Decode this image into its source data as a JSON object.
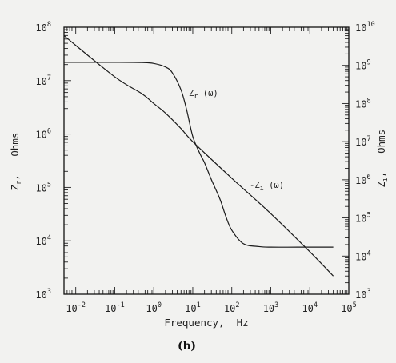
{
  "chart_data": {
    "type": "line",
    "xscale": "log",
    "yscale": "log",
    "x_ticks": [
      "10^-2",
      "10^-1",
      "10^0",
      "10^1",
      "10^2",
      "10^3",
      "10^4",
      "10^5"
    ],
    "xlim": [
      0.005,
      100000
    ],
    "xlabel": "Frequency, Hz",
    "left_axis": {
      "label": "Zr, Ohms",
      "label_display": "Z_r, Ohms",
      "ylim": [
        1000,
        100000000
      ],
      "ticks": [
        "10^3",
        "10^4",
        "10^5",
        "10^6",
        "10^7",
        "10^8"
      ]
    },
    "right_axis": {
      "label": "-Zi, Ohms",
      "label_display": "-Z_i, Ohms",
      "ylim": [
        1000,
        10000000000
      ],
      "ticks": [
        "10^3",
        "10^4",
        "10^5",
        "10^6",
        "10^7",
        "10^8",
        "10^9",
        "10^10"
      ]
    },
    "series": [
      {
        "name": "Zr(ω)",
        "axis": "left",
        "x": [
          0.005,
          0.1,
          0.5,
          1,
          2,
          3,
          5,
          7,
          10,
          15,
          20,
          30,
          50,
          70,
          100,
          200,
          500,
          1000,
          5000,
          40000
        ],
        "y": [
          22000000,
          22000000,
          21800000,
          21000000,
          18000000,
          14000000,
          6700000,
          2800000,
          900000,
          440000,
          290000,
          140000,
          60000,
          29000,
          15800,
          8800,
          7800,
          7600,
          7600,
          7600
        ]
      },
      {
        "name": "-Zi(ω)",
        "axis": "right",
        "x": [
          0.005,
          0.1,
          0.5,
          1,
          2,
          5,
          10,
          100,
          1000,
          10000,
          40000
        ],
        "y": [
          6000000000,
          500000000,
          180000000,
          100000000,
          56000000,
          22000000,
          10000000,
          1100000,
          130000,
          13000,
          3000
        ]
      }
    ],
    "curve_labels": [
      {
        "series": "Zr(ω)",
        "text_main": "Z",
        "text_sub": "r",
        "text_arg": " (ω)"
      },
      {
        "series": "-Zi(ω)",
        "text_main": "-Z",
        "text_sub": "i",
        "text_arg": " (ω)"
      }
    ],
    "panel_label": "(b)"
  }
}
